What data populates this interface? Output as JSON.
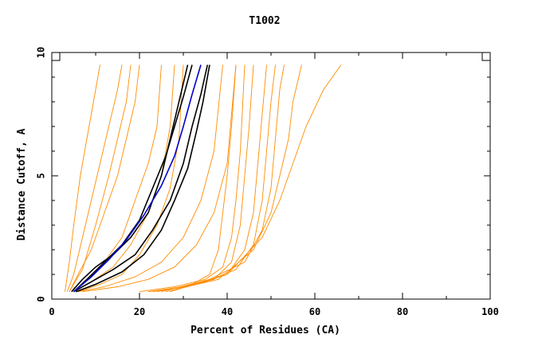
{
  "chart_data": {
    "type": "line",
    "title": "T1002",
    "xlabel": "Percent of Residues (CA)",
    "ylabel": "Distance Cutoff, A",
    "xlim": [
      0,
      100
    ],
    "ylim": [
      0,
      10
    ],
    "x_ticks": [
      "0",
      "20",
      "40",
      "60",
      "80",
      "100"
    ],
    "y_ticks": [
      "0",
      "5",
      "10"
    ],
    "grid": false,
    "legend": "none",
    "colors": {
      "orange": "#ff8c00",
      "black": "#000000",
      "blue": "#0000cc"
    },
    "series": [
      {
        "color": "orange",
        "points": [
          [
            3,
            0.3
          ],
          [
            4,
            1.5
          ],
          [
            5,
            3
          ],
          [
            6.5,
            5
          ],
          [
            8,
            6.5
          ],
          [
            9.5,
            8
          ],
          [
            11,
            9.5
          ]
        ]
      },
      {
        "color": "orange",
        "points": [
          [
            3.5,
            0.3
          ],
          [
            5,
            1
          ],
          [
            7,
            2.5
          ],
          [
            9,
            4
          ],
          [
            11,
            5.5
          ],
          [
            13,
            7
          ],
          [
            15,
            8.5
          ],
          [
            16,
            9.5
          ]
        ]
      },
      {
        "color": "orange",
        "points": [
          [
            4,
            0.3
          ],
          [
            6,
            1
          ],
          [
            9,
            2
          ],
          [
            12,
            3.5
          ],
          [
            15,
            5
          ],
          [
            17,
            6.5
          ],
          [
            19,
            8
          ],
          [
            20,
            9.5
          ]
        ]
      },
      {
        "color": "orange",
        "points": [
          [
            5,
            0.3
          ],
          [
            8,
            0.8
          ],
          [
            12,
            1.5
          ],
          [
            16,
            2.5
          ],
          [
            19,
            4
          ],
          [
            22,
            5.5
          ],
          [
            24,
            7
          ],
          [
            25,
            9.5
          ]
        ]
      },
      {
        "color": "orange",
        "points": [
          [
            5,
            0.3
          ],
          [
            9,
            0.7
          ],
          [
            14,
            1.3
          ],
          [
            18,
            2.2
          ],
          [
            22,
            3.5
          ],
          [
            25,
            5
          ],
          [
            27,
            7
          ],
          [
            28,
            9.5
          ]
        ]
      },
      {
        "color": "orange",
        "points": [
          [
            6,
            0.3
          ],
          [
            11,
            0.6
          ],
          [
            16,
            1
          ],
          [
            20,
            1.8
          ],
          [
            24,
            3
          ],
          [
            27,
            4.5
          ],
          [
            29,
            6.5
          ],
          [
            30,
            9.5
          ]
        ]
      },
      {
        "color": "orange",
        "points": [
          [
            4,
            0.3
          ],
          [
            7,
            1.2
          ],
          [
            10,
            3
          ],
          [
            13,
            5
          ],
          [
            15,
            6.5
          ],
          [
            17,
            8
          ],
          [
            18,
            9.5
          ]
        ]
      },
      {
        "color": "orange",
        "points": [
          [
            6,
            0.3
          ],
          [
            12,
            0.5
          ],
          [
            19,
            0.9
          ],
          [
            25,
            1.5
          ],
          [
            30,
            2.5
          ],
          [
            34,
            4
          ],
          [
            37,
            6
          ],
          [
            39,
            9.5
          ]
        ]
      },
      {
        "color": "orange",
        "points": [
          [
            7,
            0.3
          ],
          [
            15,
            0.5
          ],
          [
            22,
            0.8
          ],
          [
            28,
            1.3
          ],
          [
            33,
            2.2
          ],
          [
            37,
            3.5
          ],
          [
            40,
            5.5
          ],
          [
            42,
            9.5
          ]
        ]
      },
      {
        "color": "orange",
        "points": [
          [
            20,
            0.3
          ],
          [
            28,
            0.5
          ],
          [
            35,
            0.8
          ],
          [
            39,
            1.3
          ],
          [
            41,
            2.5
          ],
          [
            42,
            4
          ],
          [
            43,
            6
          ],
          [
            44,
            9.5
          ]
        ]
      },
      {
        "color": "orange",
        "points": [
          [
            22,
            0.3
          ],
          [
            30,
            0.5
          ],
          [
            37,
            0.8
          ],
          [
            41,
            1.5
          ],
          [
            43,
            3
          ],
          [
            44,
            5
          ],
          [
            45,
            7
          ],
          [
            46,
            9.5
          ]
        ]
      },
      {
        "color": "orange",
        "points": [
          [
            23,
            0.3
          ],
          [
            33,
            0.6
          ],
          [
            40,
            1
          ],
          [
            44,
            2
          ],
          [
            46,
            3.5
          ],
          [
            47,
            5.5
          ],
          [
            48,
            7.5
          ],
          [
            49,
            9.5
          ]
        ]
      },
      {
        "color": "orange",
        "points": [
          [
            24,
            0.3
          ],
          [
            35,
            0.7
          ],
          [
            42,
            1.2
          ],
          [
            46,
            2.2
          ],
          [
            48,
            4
          ],
          [
            49,
            6
          ],
          [
            50,
            8
          ],
          [
            51,
            9.5
          ]
        ]
      },
      {
        "color": "orange",
        "points": [
          [
            25,
            0.3
          ],
          [
            36,
            0.8
          ],
          [
            44,
            1.5
          ],
          [
            48,
            2.8
          ],
          [
            50,
            4.5
          ],
          [
            51,
            6.5
          ],
          [
            52,
            8.5
          ],
          [
            53,
            9.5
          ]
        ]
      },
      {
        "color": "orange",
        "points": [
          [
            26,
            0.3
          ],
          [
            38,
            0.8
          ],
          [
            46,
            2
          ],
          [
            50,
            3.5
          ],
          [
            52,
            5
          ],
          [
            54,
            6.5
          ],
          [
            55,
            8
          ],
          [
            57,
            9.5
          ]
        ]
      },
      {
        "color": "orange",
        "points": [
          [
            27,
            0.3
          ],
          [
            40,
            1
          ],
          [
            48,
            2.5
          ],
          [
            52,
            4
          ],
          [
            55,
            5.5
          ],
          [
            58,
            7
          ],
          [
            62,
            8.5
          ],
          [
            66,
            9.5
          ]
        ]
      },
      {
        "color": "orange",
        "points": [
          [
            22,
            0.3
          ],
          [
            31,
            0.5
          ],
          [
            36,
            1
          ],
          [
            38,
            2
          ],
          [
            39,
            3.5
          ],
          [
            40,
            5
          ],
          [
            41,
            7
          ],
          [
            42,
            9.5
          ]
        ]
      },
      {
        "color": "black",
        "points": [
          [
            5,
            0.3
          ],
          [
            8,
            0.8
          ],
          [
            12,
            1.5
          ],
          [
            16,
            2.2
          ],
          [
            20,
            3.2
          ],
          [
            23,
            4.5
          ],
          [
            26,
            5.8
          ],
          [
            28,
            7
          ],
          [
            30,
            8.2
          ],
          [
            32,
            9.5
          ]
        ]
      },
      {
        "color": "black",
        "points": [
          [
            4.5,
            0.3
          ],
          [
            7,
            0.8
          ],
          [
            10,
            1.3
          ],
          [
            14,
            1.8
          ],
          [
            18,
            2.5
          ],
          [
            22,
            3.5
          ],
          [
            25,
            5
          ],
          [
            27,
            6.5
          ],
          [
            29,
            8
          ],
          [
            31,
            9.5
          ]
        ]
      },
      {
        "color": "black",
        "points": [
          [
            5,
            0.3
          ],
          [
            9,
            0.7
          ],
          [
            14,
            1.2
          ],
          [
            19,
            1.8
          ],
          [
            23,
            2.8
          ],
          [
            27,
            4
          ],
          [
            30,
            5.5
          ],
          [
            32,
            7
          ],
          [
            34,
            8.3
          ],
          [
            35.5,
            9.5
          ]
        ]
      },
      {
        "color": "black",
        "points": [
          [
            5.5,
            0.3
          ],
          [
            10,
            0.6
          ],
          [
            16,
            1.1
          ],
          [
            21,
            1.8
          ],
          [
            25,
            2.8
          ],
          [
            28,
            4
          ],
          [
            31,
            5.3
          ],
          [
            33,
            6.8
          ],
          [
            34.5,
            8
          ],
          [
            36,
            9.5
          ]
        ]
      },
      {
        "color": "blue",
        "points": [
          [
            5,
            0.3
          ],
          [
            9,
            0.9
          ],
          [
            13,
            1.6
          ],
          [
            17,
            2.4
          ],
          [
            21,
            3.4
          ],
          [
            25,
            4.6
          ],
          [
            28,
            5.8
          ],
          [
            30,
            7
          ],
          [
            32,
            8.3
          ],
          [
            34,
            9.5
          ]
        ]
      }
    ]
  }
}
